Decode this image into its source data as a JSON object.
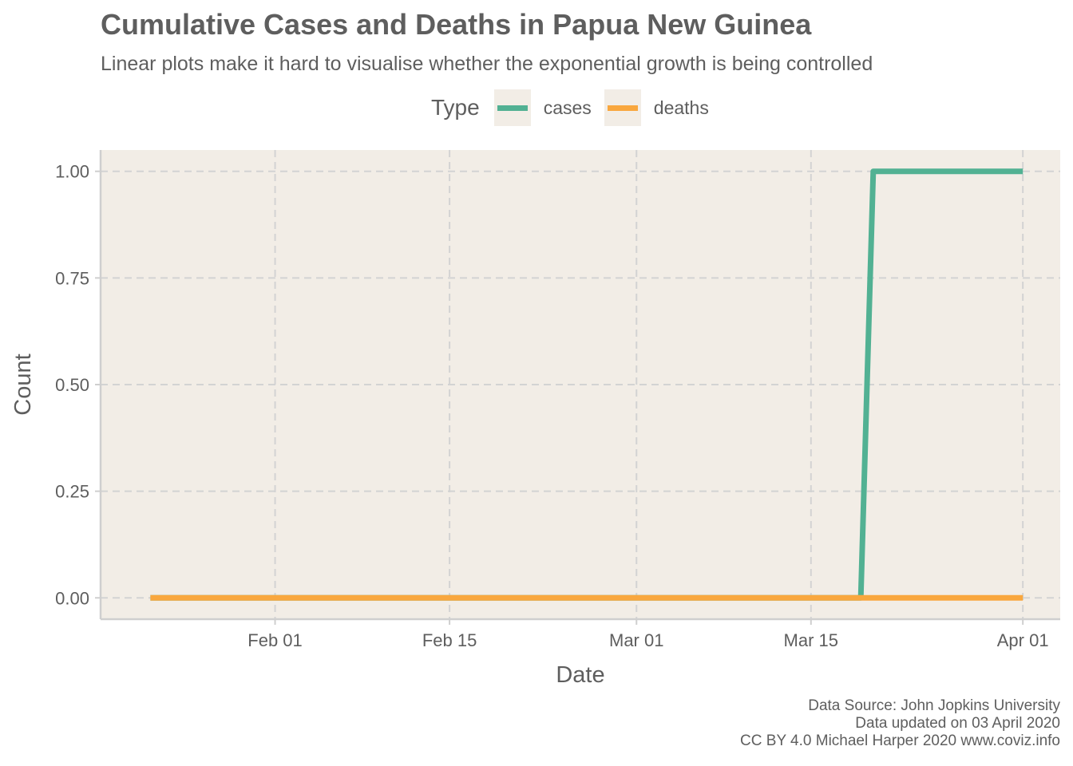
{
  "chart_data": {
    "type": "line",
    "title": "Cumulative Cases and Deaths in Papua New Guinea",
    "subtitle": "Linear plots make it hard to visualise whether the exponential growth is being controlled",
    "xlabel": "Date",
    "ylabel": "Count",
    "legend_title": "Type",
    "legend_position": "top",
    "x_tick_labels": [
      "Feb 01",
      "Feb 15",
      "Mar 01",
      "Mar 15",
      "Apr 01"
    ],
    "x_tick_dates": [
      "2020-02-01",
      "2020-02-15",
      "2020-03-01",
      "2020-03-15",
      "2020-04-01"
    ],
    "xlim": [
      "2020-01-18",
      "2020-04-04"
    ],
    "y_tick_labels": [
      "0.00",
      "0.25",
      "0.50",
      "0.75",
      "1.00"
    ],
    "y_ticks": [
      0,
      0.25,
      0.5,
      0.75,
      1.0
    ],
    "ylim": [
      -0.05,
      1.05
    ],
    "grid": true,
    "background": "#f2ede6",
    "series": [
      {
        "name": "cases",
        "color": "#52b193",
        "points": [
          [
            "2020-01-22",
            0
          ],
          [
            "2020-03-19",
            0
          ],
          [
            "2020-03-20",
            1
          ],
          [
            "2020-04-01",
            1
          ]
        ]
      },
      {
        "name": "deaths",
        "color": "#f9a73e",
        "points": [
          [
            "2020-01-22",
            0
          ],
          [
            "2020-04-01",
            0
          ]
        ]
      }
    ]
  },
  "caption": {
    "source": "Data Source: John Jopkins University",
    "updated": "Data updated on 03 April 2020",
    "license": "CC BY 4.0 Michael Harper 2020 www.coviz.info"
  }
}
